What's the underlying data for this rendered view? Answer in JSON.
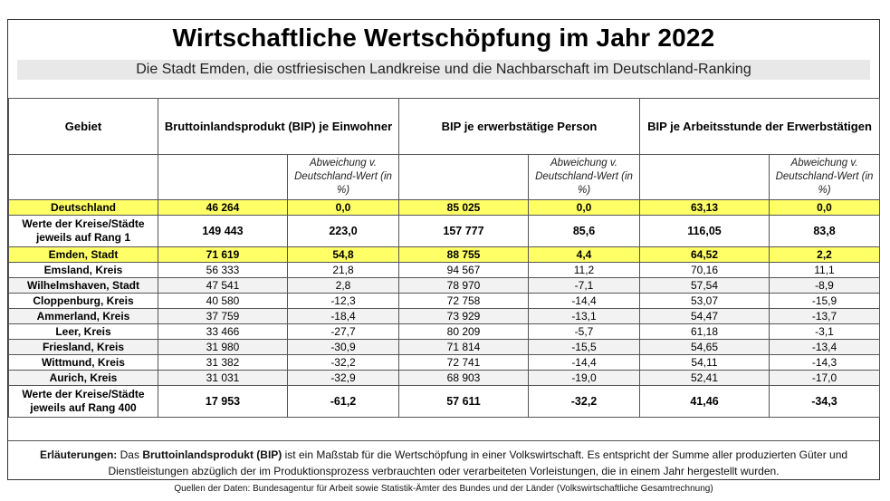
{
  "title": "Wirtschaftliche Wertschöpfung im Jahr 2022",
  "subtitle": "Die Stadt Emden, die ostfriesischen Landkreise und die Nachbarschaft im Deutschland-Ranking",
  "headers": {
    "gebiet": "Gebiet",
    "col1": "Bruttoinlandsprodukt (BIP) je Einwohner",
    "col2": "BIP je erwerbstätige Person",
    "col3": "BIP je Arbeitsstunde der Erwerbstätigen",
    "sub": "Abweichung v. Deutschland-Wert (in %)"
  },
  "rows": [
    {
      "name": "Deutschland",
      "v1": "46 264",
      "d1": "0,0",
      "v2": "85 025",
      "d2": "0,0",
      "v3": "63,13",
      "d3": "0,0"
    },
    {
      "name": "Werte der Kreise/Städte jeweils auf Rang 1",
      "v1": "149 443",
      "d1": "223,0",
      "v2": "157 777",
      "d2": "85,6",
      "v3": "116,05",
      "d3": "83,8"
    },
    {
      "name": "Emden, Stadt",
      "v1": "71 619",
      "d1": "54,8",
      "v2": "88 755",
      "d2": "4,4",
      "v3": "64,52",
      "d3": "2,2"
    },
    {
      "name": "Emsland, Kreis",
      "v1": "56 333",
      "d1": "21,8",
      "v2": "94 567",
      "d2": "11,2",
      "v3": "70,16",
      "d3": "11,1"
    },
    {
      "name": "Wilhelmshaven, Stadt",
      "v1": "47 541",
      "d1": "2,8",
      "v2": "78 970",
      "d2": "-7,1",
      "v3": "57,54",
      "d3": "-8,9"
    },
    {
      "name": "Cloppenburg, Kreis",
      "v1": "40 580",
      "d1": "-12,3",
      "v2": "72 758",
      "d2": "-14,4",
      "v3": "53,07",
      "d3": "-15,9"
    },
    {
      "name": "Ammerland, Kreis",
      "v1": "37 759",
      "d1": "-18,4",
      "v2": "73 929",
      "d2": "-13,1",
      "v3": "54,47",
      "d3": "-13,7"
    },
    {
      "name": "Leer, Kreis",
      "v1": "33 466",
      "d1": "-27,7",
      "v2": "80 209",
      "d2": "-5,7",
      "v3": "61,18",
      "d3": "-3,1"
    },
    {
      "name": "Friesland, Kreis",
      "v1": "31 980",
      "d1": "-30,9",
      "v2": "71 814",
      "d2": "-15,5",
      "v3": "54,65",
      "d3": "-13,4"
    },
    {
      "name": "Wittmund, Kreis",
      "v1": "31 382",
      "d1": "-32,2",
      "v2": "72 741",
      "d2": "-14,4",
      "v3": "54,11",
      "d3": "-14,3"
    },
    {
      "name": "Aurich, Kreis",
      "v1": "31 031",
      "d1": "-32,9",
      "v2": "68 903",
      "d2": "-19,0",
      "v3": "52,41",
      "d3": "-17,0"
    },
    {
      "name": "Werte der Kreise/Städte jeweils auf Rang 400",
      "v1": "17 953",
      "d1": "-61,2",
      "v2": "57 611",
      "d2": "-32,2",
      "v3": "41,46",
      "d3": "-34,3"
    }
  ],
  "notes": {
    "label": "Erläuterungen:",
    "pre": "Das",
    "term": "Bruttoinlandsprodukt (BIP)",
    "text": "ist ein Maßstab für die Wertschöpfung in einer Volkswirtschaft. Es  entspricht der Summe aller produzierten Güter und Dienstleistungen abzüglich der im Produktionsprozess verbrauchten oder verarbeiteten Vorleistungen, die in einem Jahr hergestellt wurden."
  },
  "sources": {
    "label": "Quellen der Daten:",
    "text": "Bundesagentur für Arbeit sowie Statistik-Ämter des Bundes und der Länder (Volkswirtschaftliche Gesamtrechnung)"
  },
  "colors": {
    "highlight": "#ffff66",
    "alt_row": "#f2f2f2",
    "subtitle_bg": "#e8e8e8"
  }
}
